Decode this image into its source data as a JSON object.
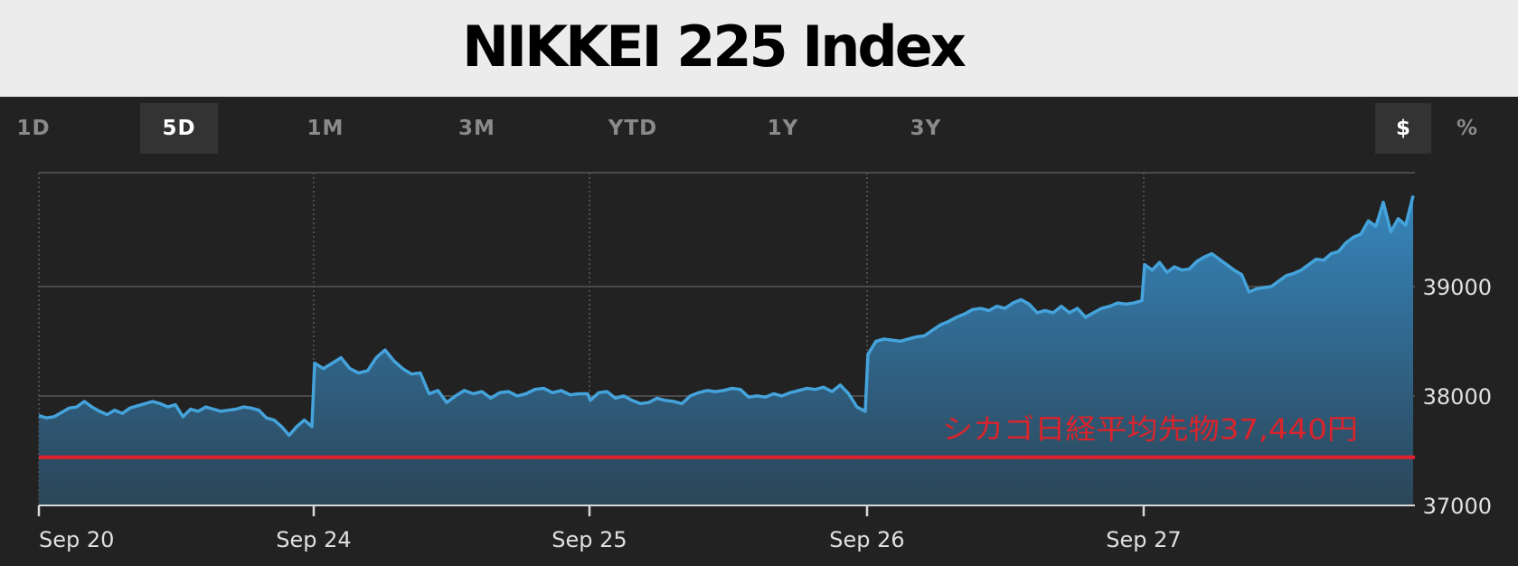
{
  "title": "NIKKEI 225 Index",
  "tabs": [
    {
      "label": "1D",
      "active": false
    },
    {
      "label": "5D",
      "active": true
    },
    {
      "label": "1M",
      "active": false
    },
    {
      "label": "3M",
      "active": false
    },
    {
      "label": "YTD",
      "active": false
    },
    {
      "label": "1Y",
      "active": false
    },
    {
      "label": "3Y",
      "active": false
    }
  ],
  "units": [
    {
      "label": "$",
      "active": true
    },
    {
      "label": "%",
      "active": false
    }
  ],
  "colors": {
    "background": "#222222",
    "header_bg": "#ececec",
    "line": "#45a3dc",
    "area_top": "#3686bd",
    "area_bottom": "#2b4557",
    "futures_line": "#e0202c",
    "futures_text": "#d9242c",
    "grid": "#4a4a4a",
    "tick_text": "#e0e0e0"
  },
  "chart_data": {
    "type": "area",
    "title": "NIKKEI 225 Index",
    "xlabel": "",
    "ylabel": "",
    "x_ticks": [
      "Sep 20",
      "Sep 24",
      "Sep 25",
      "Sep 26",
      "Sep 27"
    ],
    "y_ticks": [
      37000,
      38000,
      39000
    ],
    "ylim": [
      37000,
      40040
    ],
    "grid": true,
    "series": [
      {
        "type": "area",
        "days": [
          {
            "day": "Sep 20",
            "values": [
              37820,
              37800,
              37810,
              37850,
              37890,
              37900,
              37950,
              37900,
              37860,
              37830,
              37870,
              37840,
              37890,
              37910,
              37930,
              37950,
              37930,
              37900,
              37920,
              37810,
              37880,
              37860,
              37900,
              37880,
              37860,
              37870,
              37880,
              37900,
              37890,
              37870,
              37800,
              37780,
              37720,
              37640,
              37720,
              37780,
              37720
            ]
          },
          {
            "day": "Sep 24",
            "values": [
              38300,
              38250,
              38300,
              38350,
              38250,
              38210,
              38230,
              38350,
              38420,
              38320,
              38250,
              38200,
              38210,
              38020,
              38050,
              37940,
              38000,
              38050,
              38020,
              38040,
              37980,
              38030,
              38040,
              38000,
              38020,
              38060,
              38070,
              38030,
              38050,
              38010,
              38020,
              38020
            ]
          },
          {
            "day": "Sep 25",
            "values": [
              37960,
              38030,
              38040,
              37980,
              38000,
              37960,
              37930,
              37940,
              37980,
              37960,
              37950,
              37930,
              38000,
              38030,
              38050,
              38040,
              38050,
              38070,
              38060,
              37990,
              38000,
              37990,
              38020,
              38000,
              38030,
              38050,
              38070,
              38060,
              38080,
              38040,
              38100,
              38020,
              37900,
              37860
            ]
          },
          {
            "day": "Sep 26",
            "values": [
              38380,
              38500,
              38520,
              38510,
              38500,
              38520,
              38540,
              38550,
              38600,
              38650,
              38680,
              38720,
              38750,
              38790,
              38800,
              38780,
              38820,
              38800,
              38850,
              38880,
              38840,
              38760,
              38780,
              38760,
              38820,
              38760,
              38800,
              38720,
              38760,
              38800,
              38820,
              38850,
              38840,
              38850,
              38870
            ]
          },
          {
            "day": "Sep 27",
            "values": [
              39200,
              39150,
              39220,
              39130,
              39180,
              39150,
              39160,
              39230,
              39270,
              39300,
              39250,
              39200,
              39150,
              39110,
              38950,
              38980,
              38990,
              39000,
              39050,
              39100,
              39120,
              39150,
              39200,
              39250,
              39240,
              39300,
              39320,
              39400,
              39450,
              39480,
              39600,
              39550,
              39770,
              39500,
              39620,
              39560,
              39830
            ]
          }
        ]
      }
    ],
    "reference_line": {
      "label": "シカゴ日経平均先物37,440円",
      "value": 37440
    }
  }
}
